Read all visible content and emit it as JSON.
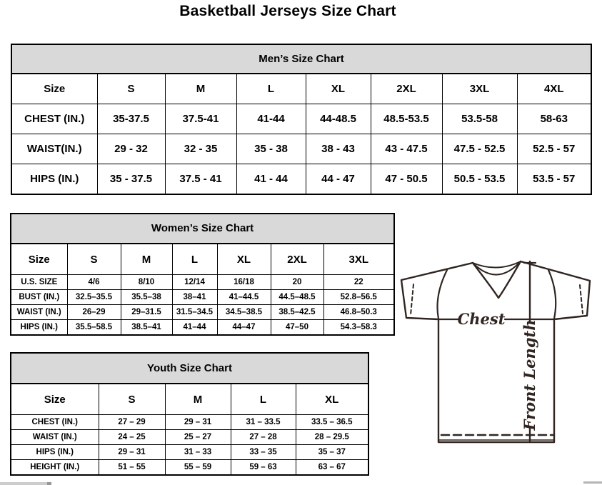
{
  "page_title": "Basketball Jerseys Size Chart",
  "colors": {
    "table_header_bg": "#d9d9d9",
    "table_border": "#000000",
    "diagram_stroke": "#302520"
  },
  "tables": {
    "men": {
      "title": "Men’s Size Chart",
      "header": [
        "Size",
        "S",
        "M",
        "L",
        "XL",
        "2XL",
        "3XL",
        "4XL"
      ],
      "rows": [
        [
          "CHEST (IN.)",
          "35-37.5",
          "37.5-41",
          "41-44",
          "44-48.5",
          "48.5-53.5",
          "53.5-58",
          "58-63"
        ],
        [
          "WAIST(IN.)",
          "29 - 32",
          "32 - 35",
          "35 - 38",
          "38 - 43",
          "43 - 47.5",
          "47.5 - 52.5",
          "52.5 - 57"
        ],
        [
          "HIPS (IN.)",
          "35 - 37.5",
          "37.5 - 41",
          "41 - 44",
          "44 - 47",
          "47 - 50.5",
          "50.5 - 53.5",
          "53.5 - 57"
        ]
      ]
    },
    "women": {
      "title": "Women’s Size Chart",
      "header": [
        "Size",
        "S",
        "M",
        "L",
        "XL",
        "2XL",
        "3XL"
      ],
      "rows": [
        [
          "U.S. SIZE",
          "4/6",
          "8/10",
          "12/14",
          "16/18",
          "20",
          "22"
        ],
        [
          "BUST (IN.)",
          "32.5–35.5",
          "35.5–38",
          "38–41",
          "41–44.5",
          "44.5–48.5",
          "52.8–56.5"
        ],
        [
          "WAIST (IN.)",
          "26–29",
          "29–31.5",
          "31.5–34.5",
          "34.5–38.5",
          "38.5–42.5",
          "46.8–50.3"
        ],
        [
          "HIPS (IN.)",
          "35.5–58.5",
          "38.5–41",
          "41–44",
          "44–47",
          "47–50",
          "54.3–58.3"
        ]
      ]
    },
    "youth": {
      "title": "Youth Size Chart",
      "header": [
        "Size",
        "S",
        "M",
        "L",
        "XL"
      ],
      "rows": [
        [
          "CHEST (IN.)",
          "27 – 29",
          "29 – 31",
          "31 – 33.5",
          "33.5 – 36.5"
        ],
        [
          "WAIST (IN.)",
          "24 – 25",
          "25 – 27",
          "27 – 28",
          "28 – 29.5"
        ],
        [
          "HIPS (IN.)",
          "29 – 31",
          "31 – 33",
          "33 – 35",
          "35 – 37"
        ],
        [
          "HEIGHT (IN.)",
          "51 – 55",
          "55 – 59",
          "59 – 63",
          "63 – 67"
        ]
      ]
    }
  },
  "diagram": {
    "chest_label": "Chest",
    "front_length_label": "Front Length"
  }
}
